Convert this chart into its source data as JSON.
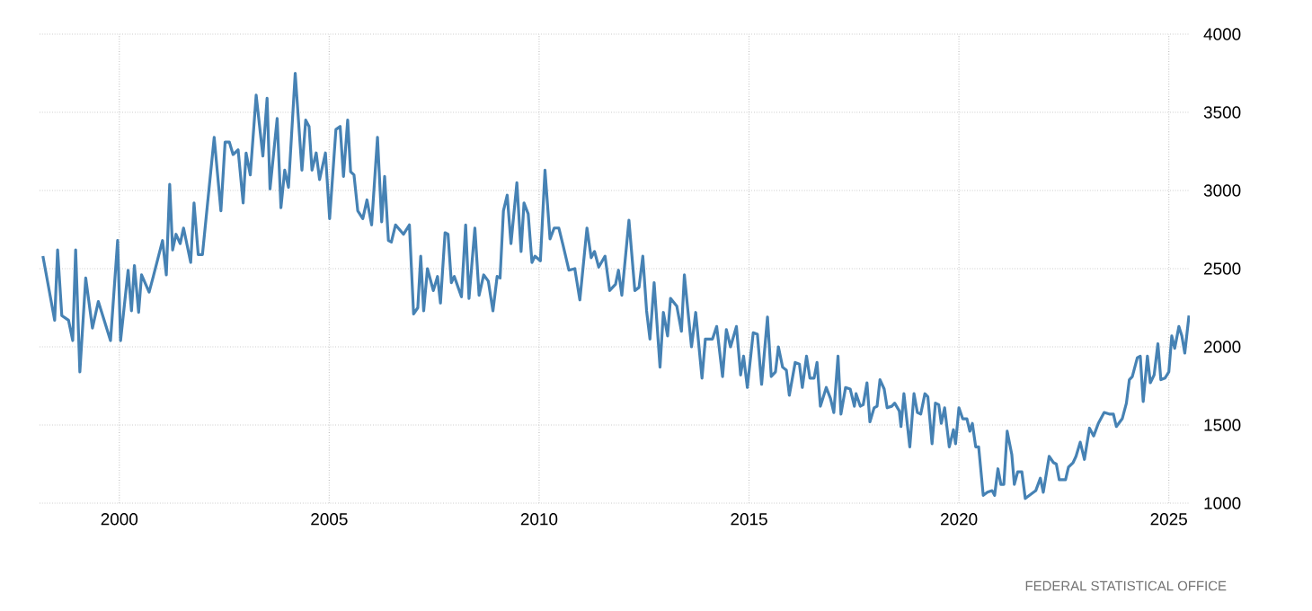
{
  "chart_data": {
    "type": "line",
    "color": "#4682b4",
    "grid": true,
    "xlim": [
      1998.1,
      2025.5
    ],
    "ylim": [
      1000,
      4000
    ],
    "xticks": [
      2000,
      2005,
      2010,
      2015,
      2020,
      2025
    ],
    "yticks": [
      1000,
      1500,
      2000,
      2500,
      3000,
      3500,
      4000
    ],
    "annotations": [
      "FEDERAL STATISTICAL OFFICE"
    ],
    "x": [
      1998.18,
      1998.46,
      1998.53,
      1998.63,
      1998.79,
      1998.89,
      1998.96,
      1999.06,
      1999.2,
      1999.36,
      1999.5,
      1999.79,
      1999.96,
      2000.03,
      2000.21,
      2000.29,
      2000.36,
      2000.46,
      2000.53,
      2000.71,
      2000.81,
      2001.03,
      2001.12,
      2001.2,
      2001.27,
      2001.35,
      2001.45,
      2001.53,
      2001.7,
      2001.78,
      2001.88,
      2001.98,
      2002.26,
      2002.42,
      2002.52,
      2002.62,
      2002.71,
      2002.83,
      2002.95,
      2003.02,
      2003.12,
      2003.26,
      2003.42,
      2003.52,
      2003.59,
      2003.76,
      2003.85,
      2003.94,
      2004.03,
      2004.19,
      2004.35,
      2004.44,
      2004.52,
      2004.59,
      2004.69,
      2004.77,
      2004.91,
      2005.01,
      2005.16,
      2005.26,
      2005.34,
      2005.44,
      2005.51,
      2005.59,
      2005.68,
      2005.8,
      2005.9,
      2006.01,
      2006.15,
      2006.25,
      2006.32,
      2006.41,
      2006.48,
      2006.58,
      2006.77,
      2006.91,
      2007.01,
      2007.11,
      2007.18,
      2007.25,
      2007.34,
      2007.48,
      2007.58,
      2007.65,
      2007.76,
      2007.83,
      2007.91,
      2007.98,
      2008.15,
      2008.25,
      2008.33,
      2008.47,
      2008.57,
      2008.68,
      2008.79,
      2008.9,
      2009.0,
      2009.07,
      2009.15,
      2009.24,
      2009.33,
      2009.47,
      2009.57,
      2009.64,
      2009.74,
      2009.83,
      2009.9,
      2010.03,
      2010.14,
      2010.26,
      2010.36,
      2010.47,
      2010.57,
      2010.71,
      2010.85,
      2010.97,
      2011.14,
      2011.24,
      2011.32,
      2011.42,
      2011.57,
      2011.68,
      2011.82,
      2011.89,
      2011.97,
      2012.14,
      2012.28,
      2012.38,
      2012.47,
      2012.56,
      2012.64,
      2012.74,
      2012.88,
      2012.96,
      2013.06,
      2013.13,
      2013.28,
      2013.39,
      2013.46,
      2013.63,
      2013.73,
      2013.88,
      2013.96,
      2014.13,
      2014.23,
      2014.37,
      2014.46,
      2014.56,
      2014.7,
      2014.8,
      2014.87,
      2014.96,
      2015.1,
      2015.2,
      2015.3,
      2015.44,
      2015.53,
      2015.63,
      2015.7,
      2015.8,
      2015.89,
      2015.96,
      2016.1,
      2016.2,
      2016.27,
      2016.37,
      2016.45,
      2016.55,
      2016.62,
      2016.7,
      2016.84,
      2016.94,
      2017.02,
      2017.12,
      2017.19,
      2017.3,
      2017.41,
      2017.51,
      2017.55,
      2017.65,
      2017.72,
      2017.81,
      2017.88,
      2017.98,
      2018.05,
      2018.12,
      2018.22,
      2018.29,
      2018.4,
      2018.47,
      2018.58,
      2018.62,
      2018.69,
      2018.83,
      2018.93,
      2019.01,
      2019.09,
      2019.19,
      2019.26,
      2019.36,
      2019.44,
      2019.52,
      2019.58,
      2019.66,
      2019.77,
      2019.87,
      2019.92,
      2020.0,
      2020.09,
      2020.19,
      2020.26,
      2020.32,
      2020.4,
      2020.47,
      2020.58,
      2020.68,
      2020.79,
      2020.85,
      2020.93,
      2021.0,
      2021.07,
      2021.15,
      2021.26,
      2021.32,
      2021.4,
      2021.5,
      2021.58,
      2021.73,
      2021.83,
      2021.94,
      2022.01,
      2022.15,
      2022.25,
      2022.32,
      2022.39,
      2022.54,
      2022.61,
      2022.72,
      2022.79,
      2022.89,
      2022.99,
      2023.11,
      2023.21,
      2023.32,
      2023.46,
      2023.58,
      2023.68,
      2023.75,
      2023.89,
      2023.99,
      2024.06,
      2024.13,
      2024.25,
      2024.32,
      2024.39,
      2024.49,
      2024.56,
      2024.65,
      2024.74,
      2024.81,
      2024.91,
      2025.0,
      2025.07,
      2025.14,
      2025.24,
      2025.31,
      2025.38,
      2025.48
    ],
    "values": [
      2580,
      2170,
      2620,
      2200,
      2170,
      2040,
      2620,
      1840,
      2440,
      2120,
      2290,
      2040,
      2680,
      2040,
      2490,
      2230,
      2520,
      2220,
      2460,
      2350,
      2450,
      2680,
      2460,
      3040,
      2620,
      2720,
      2660,
      2760,
      2540,
      2920,
      2590,
      2590,
      3340,
      2870,
      3310,
      3310,
      3230,
      3260,
      2920,
      3240,
      3100,
      3610,
      3220,
      3590,
      3010,
      3460,
      2890,
      3130,
      3020,
      3750,
      3130,
      3450,
      3410,
      3130,
      3240,
      3070,
      3240,
      2820,
      3390,
      3410,
      3090,
      3450,
      3120,
      3100,
      2870,
      2820,
      2940,
      2780,
      3340,
      2800,
      3090,
      2680,
      2670,
      2780,
      2720,
      2780,
      2210,
      2250,
      2580,
      2230,
      2500,
      2360,
      2450,
      2280,
      2730,
      2720,
      2410,
      2450,
      2320,
      2780,
      2310,
      2760,
      2330,
      2460,
      2420,
      2230,
      2450,
      2440,
      2870,
      2970,
      2660,
      3050,
      2610,
      2920,
      2850,
      2540,
      2580,
      2550,
      3130,
      2690,
      2760,
      2760,
      2650,
      2490,
      2500,
      2300,
      2760,
      2570,
      2610,
      2510,
      2580,
      2360,
      2400,
      2490,
      2330,
      2810,
      2360,
      2380,
      2580,
      2230,
      2050,
      2410,
      1870,
      2220,
      2070,
      2310,
      2260,
      2100,
      2460,
      2000,
      2220,
      1800,
      2050,
      2050,
      2130,
      1810,
      2110,
      2000,
      2130,
      1820,
      1940,
      1740,
      2090,
      2080,
      1760,
      2190,
      1810,
      1840,
      2000,
      1870,
      1850,
      1690,
      1900,
      1890,
      1740,
      1940,
      1800,
      1800,
      1900,
      1620,
      1740,
      1670,
      1580,
      1940,
      1570,
      1740,
      1730,
      1620,
      1700,
      1620,
      1630,
      1770,
      1520,
      1610,
      1620,
      1790,
      1730,
      1610,
      1620,
      1640,
      1590,
      1490,
      1700,
      1360,
      1700,
      1580,
      1570,
      1700,
      1680,
      1380,
      1640,
      1630,
      1510,
      1610,
      1360,
      1470,
      1380,
      1610,
      1540,
      1540,
      1460,
      1510,
      1360,
      1360,
      1050,
      1070,
      1080,
      1050,
      1220,
      1120,
      1120,
      1460,
      1310,
      1120,
      1200,
      1200,
      1030,
      1060,
      1080,
      1160,
      1070,
      1300,
      1260,
      1250,
      1150,
      1150,
      1230,
      1260,
      1300,
      1390,
      1280,
      1480,
      1430,
      1510,
      1580,
      1570,
      1570,
      1490,
      1540,
      1640,
      1790,
      1810,
      1930,
      1940,
      1650,
      1940,
      1770,
      1820,
      2020,
      1790,
      1800,
      1840,
      2070,
      1990,
      2130,
      2070,
      1960,
      2200
    ]
  }
}
